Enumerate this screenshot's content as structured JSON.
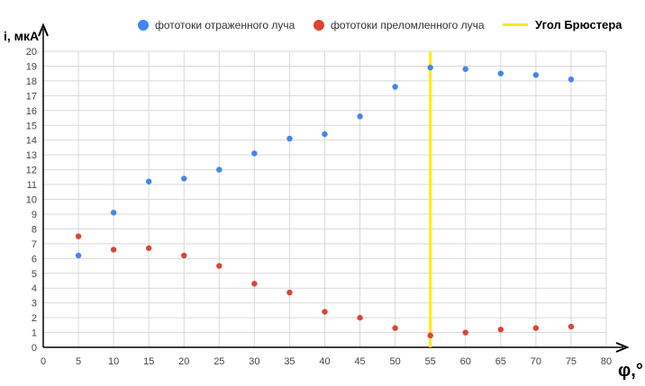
{
  "chart_data": {
    "type": "scatter",
    "ylabel": "i, мкА",
    "xlabel": "φ,°",
    "xlim": [
      0,
      80
    ],
    "ylim": [
      0,
      20
    ],
    "x_ticks": [
      0,
      5,
      10,
      15,
      20,
      25,
      30,
      35,
      40,
      45,
      50,
      55,
      60,
      65,
      70,
      75,
      80
    ],
    "y_ticks": [
      0,
      1,
      2,
      3,
      4,
      5,
      6,
      7,
      8,
      9,
      10,
      11,
      12,
      13,
      14,
      15,
      16,
      17,
      18,
      19,
      20
    ],
    "grid": true,
    "legend_position": "top",
    "series": [
      {
        "name": "фототоки отраженного луча",
        "color": "#4285f4",
        "x": [
          5,
          10,
          15,
          20,
          25,
          30,
          35,
          40,
          45,
          50,
          55,
          60,
          65,
          70,
          75
        ],
        "y": [
          6.2,
          9.1,
          11.2,
          11.4,
          12.0,
          13.1,
          14.1,
          14.4,
          15.6,
          17.6,
          18.9,
          18.8,
          18.5,
          18.4,
          18.1
        ]
      },
      {
        "name": "фототоки преломленного луча",
        "color": "#db4437",
        "x": [
          5,
          10,
          15,
          20,
          25,
          30,
          35,
          40,
          45,
          50,
          55,
          60,
          65,
          70,
          75
        ],
        "y": [
          7.5,
          6.6,
          6.7,
          6.2,
          5.5,
          4.3,
          3.7,
          2.4,
          2.0,
          1.3,
          0.8,
          1.0,
          1.2,
          1.3,
          1.4
        ]
      }
    ],
    "vertical_line": {
      "name": "Угол Брюстера",
      "x": 55,
      "color": "#ffeb00"
    }
  }
}
